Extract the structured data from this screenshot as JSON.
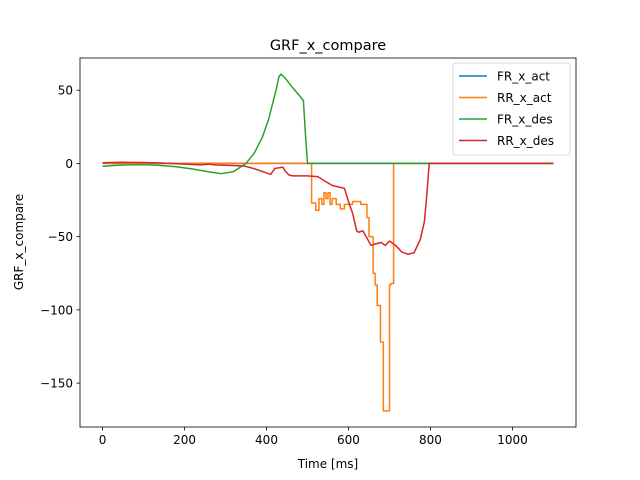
{
  "chart_data": {
    "type": "line",
    "title": "GRF_x_compare",
    "xlabel": "Time [ms]",
    "ylabel": "GRF_x_compare",
    "xlim": [
      -55,
      1155
    ],
    "ylim": [
      -180,
      72
    ],
    "xticks": [
      0,
      200,
      400,
      600,
      800,
      1000
    ],
    "yticks": [
      50,
      0,
      -50,
      -100,
      -150
    ],
    "grid": false,
    "legend_position": "top-right",
    "series": [
      {
        "name": "FR_x_act",
        "color": "#1f77b4",
        "x": [
          0,
          1100
        ],
        "y": [
          0,
          0
        ]
      },
      {
        "name": "RR_x_act",
        "color": "#ff7f0e",
        "x": [
          0,
          510,
          510,
          520,
          520,
          528,
          528,
          535,
          535,
          540,
          540,
          545,
          545,
          550,
          550,
          555,
          555,
          560,
          560,
          570,
          570,
          580,
          580,
          590,
          590,
          610,
          610,
          630,
          630,
          645,
          645,
          650,
          650,
          660,
          660,
          665,
          665,
          670,
          670,
          678,
          678,
          685,
          685,
          692,
          692,
          700,
          700,
          703,
          703,
          710,
          710,
          1100
        ],
        "y": [
          0,
          0,
          -27,
          -27,
          -32,
          -32,
          -24,
          -24,
          -28,
          -28,
          -20,
          -20,
          -24,
          -24,
          -20,
          -20,
          -28,
          -28,
          -24,
          -24,
          -28,
          -28,
          -31,
          -31,
          -28,
          -28,
          -26,
          -26,
          -28,
          -28,
          -37,
          -37,
          -50,
          -50,
          -75,
          -75,
          -83,
          -83,
          -97,
          -97,
          -122,
          -122,
          -169,
          -169,
          -169,
          -169,
          -83,
          -83,
          -82,
          -82,
          0,
          0
        ]
      },
      {
        "name": "FR_x_des",
        "color": "#2ca02c",
        "x": [
          0,
          30,
          60,
          100,
          140,
          180,
          220,
          260,
          290,
          320,
          350,
          370,
          390,
          405,
          415,
          425,
          430,
          435,
          445,
          460,
          475,
          490,
          495,
          500,
          1100
        ],
        "y": [
          -2,
          -1.3,
          -1,
          -0.8,
          -1.3,
          -2.3,
          -3.8,
          -5.8,
          -7,
          -5.5,
          0,
          7,
          18,
          30,
          41,
          52,
          59,
          61,
          58.5,
          53,
          48,
          43,
          20,
          0,
          0
        ]
      },
      {
        "name": "RR_x_des",
        "color": "#d62728",
        "x": [
          0,
          50,
          100,
          150,
          200,
          240,
          260,
          275,
          300,
          325,
          345,
          360,
          380,
          395,
          410,
          420,
          430,
          440,
          445,
          455,
          465,
          480,
          500,
          525,
          545,
          560,
          575,
          590,
          600,
          610,
          620,
          625,
          635,
          645,
          655,
          665,
          680,
          690,
          700,
          705,
          715,
          730,
          745,
          760,
          775,
          785,
          790,
          797,
          1100
        ],
        "y": [
          0.5,
          0.8,
          0.6,
          0.2,
          -0.5,
          -1,
          -0.5,
          -1,
          -1.2,
          -1.5,
          -1.8,
          -2.8,
          -4.5,
          -6,
          -7.5,
          -3.5,
          -3,
          -2.5,
          -5,
          -8,
          -8.5,
          -8.5,
          -8.5,
          -9,
          -12.5,
          -15,
          -16,
          -17,
          -26,
          -34,
          -46,
          -47,
          -46,
          -51,
          -56,
          -55,
          -54,
          -56,
          -53,
          -54,
          -56,
          -60.5,
          -62,
          -61,
          -52,
          -40,
          -25,
          0,
          0
        ]
      }
    ]
  }
}
